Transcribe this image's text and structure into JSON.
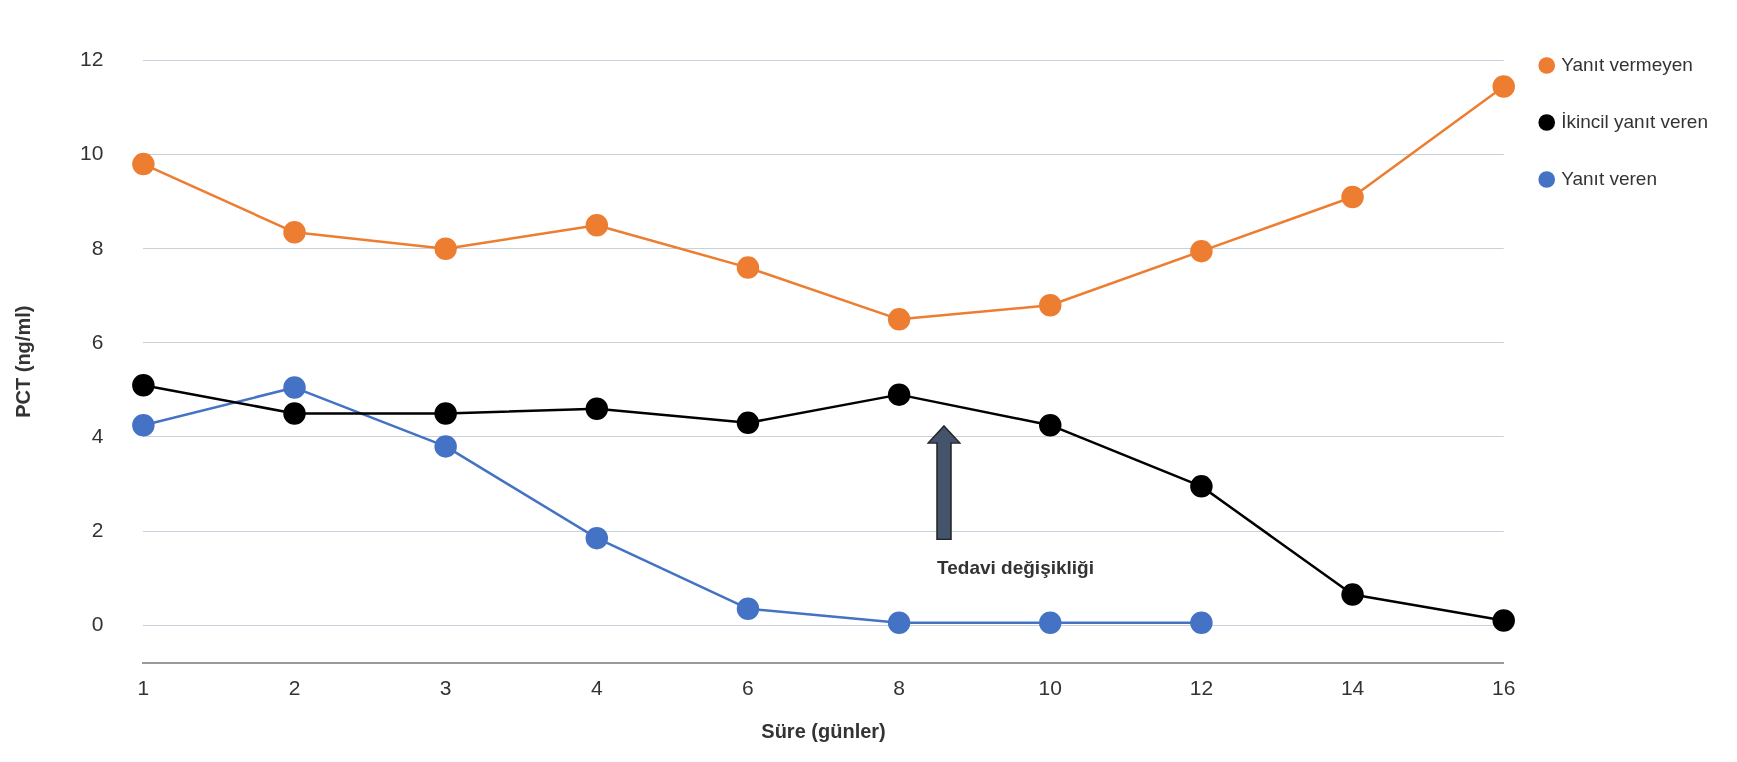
{
  "chart_data": {
    "type": "line",
    "xlabel": "Süre (günler)",
    "ylabel": "PCT (ng/ml)",
    "categories": [
      "1",
      "2",
      "3",
      "4",
      "6",
      "8",
      "10",
      "12",
      "14",
      "16"
    ],
    "series": [
      {
        "name": "Yanıt vermeyen",
        "color": "#ed7d31",
        "values": [
          9.8,
          8.35,
          8.0,
          8.5,
          7.6,
          6.5,
          6.8,
          7.95,
          9.1,
          11.45
        ]
      },
      {
        "name": "İkincil yanıt veren",
        "color": "#000000",
        "values": [
          5.1,
          4.5,
          4.5,
          4.6,
          4.3,
          4.9,
          4.25,
          2.95,
          0.65,
          0.1
        ]
      },
      {
        "name": "Yanıt veren",
        "color": "#4472c4",
        "values": [
          4.25,
          5.05,
          3.8,
          1.85,
          0.35,
          0.05,
          0.05,
          0.05,
          null,
          null
        ]
      }
    ],
    "ylim": [
      -0.8,
      12
    ],
    "yticks": [
      0,
      2,
      4,
      6,
      8,
      10,
      12
    ],
    "grid": "y",
    "legend": "top right",
    "marker": "circle",
    "line_style": "solid",
    "annotations": [
      "Tedavi değişikliği"
    ]
  }
}
